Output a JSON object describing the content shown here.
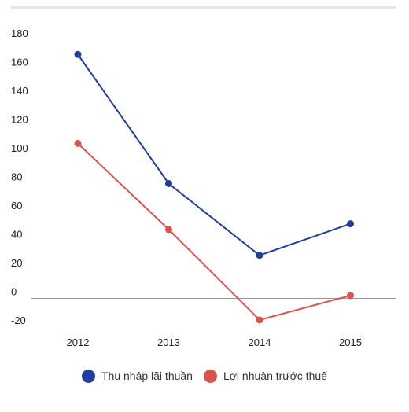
{
  "chart_data": {
    "type": "line",
    "categories": [
      "2012",
      "2013",
      "2014",
      "2015"
    ],
    "series": [
      {
        "name": "Thu nhập lãi thuần",
        "color": "#233d9e",
        "values": [
          170,
          80,
          30,
          52
        ]
      },
      {
        "name": "Lợi nhuận trước thuế",
        "color": "#d9534f",
        "values": [
          108,
          48,
          -15,
          2
        ]
      }
    ],
    "y_ticks": [
      180,
      160,
      140,
      120,
      100,
      80,
      60,
      40,
      20,
      0,
      -20
    ],
    "ylim": [
      -20,
      180
    ],
    "grid": false,
    "legend_position": "bottom-center",
    "zero_line_color": "#999999",
    "header_bar_color": "#e6e6e6"
  }
}
